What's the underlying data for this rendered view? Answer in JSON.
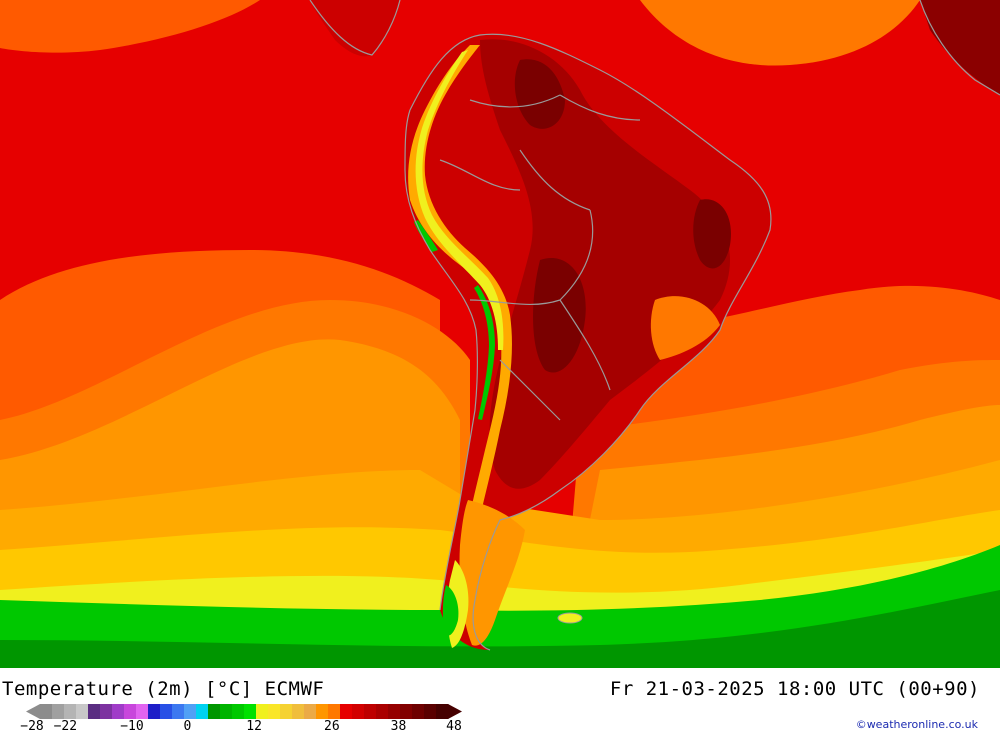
{
  "footer": {
    "title": "Temperature (2m) [°C] ECMWF",
    "datetime": "Fr 21-03-2025 18:00 UTC (00+90)",
    "credit": "©weatheronline.co.uk"
  },
  "legend": {
    "colors": [
      "#8c8c8c",
      "#a0a0a0",
      "#b4b4b4",
      "#c8c8c8",
      "#5a2d82",
      "#7d32a0",
      "#a03cc8",
      "#c846dc",
      "#e164f0",
      "#1e1ec8",
      "#2850e6",
      "#3c78f0",
      "#50a0f5",
      "#00d2f0",
      "#009600",
      "#00b400",
      "#00c800",
      "#00e100",
      "#f0f01e",
      "#fae628",
      "#f5d232",
      "#f0be3c",
      "#ebaa46",
      "#ff9600",
      "#ff7800",
      "#e60000",
      "#d20000",
      "#be0000",
      "#aa0000",
      "#960000",
      "#820000",
      "#6e0000",
      "#5a0000",
      "#460000"
    ],
    "ticks": [
      {
        "label": "−28",
        "value": -28
      },
      {
        "label": "−22",
        "value": -22
      },
      {
        "label": "−10",
        "value": -10
      },
      {
        "label": "0",
        "value": 0
      },
      {
        "label": "12",
        "value": 12
      },
      {
        "label": "26",
        "value": 26
      },
      {
        "label": "38",
        "value": 38
      },
      {
        "label": "48",
        "value": 48
      }
    ]
  },
  "palette": {
    "dark_red": "#8b0000",
    "red": "#e60000",
    "orange_red": "#ff5a00",
    "orange": "#ff9600",
    "amber": "#ffaa00",
    "yellow_orange": "#ffc800",
    "yellow": "#f0f01e",
    "green": "#00c800",
    "dark_green": "#009600",
    "border": "#9a9a9a"
  }
}
